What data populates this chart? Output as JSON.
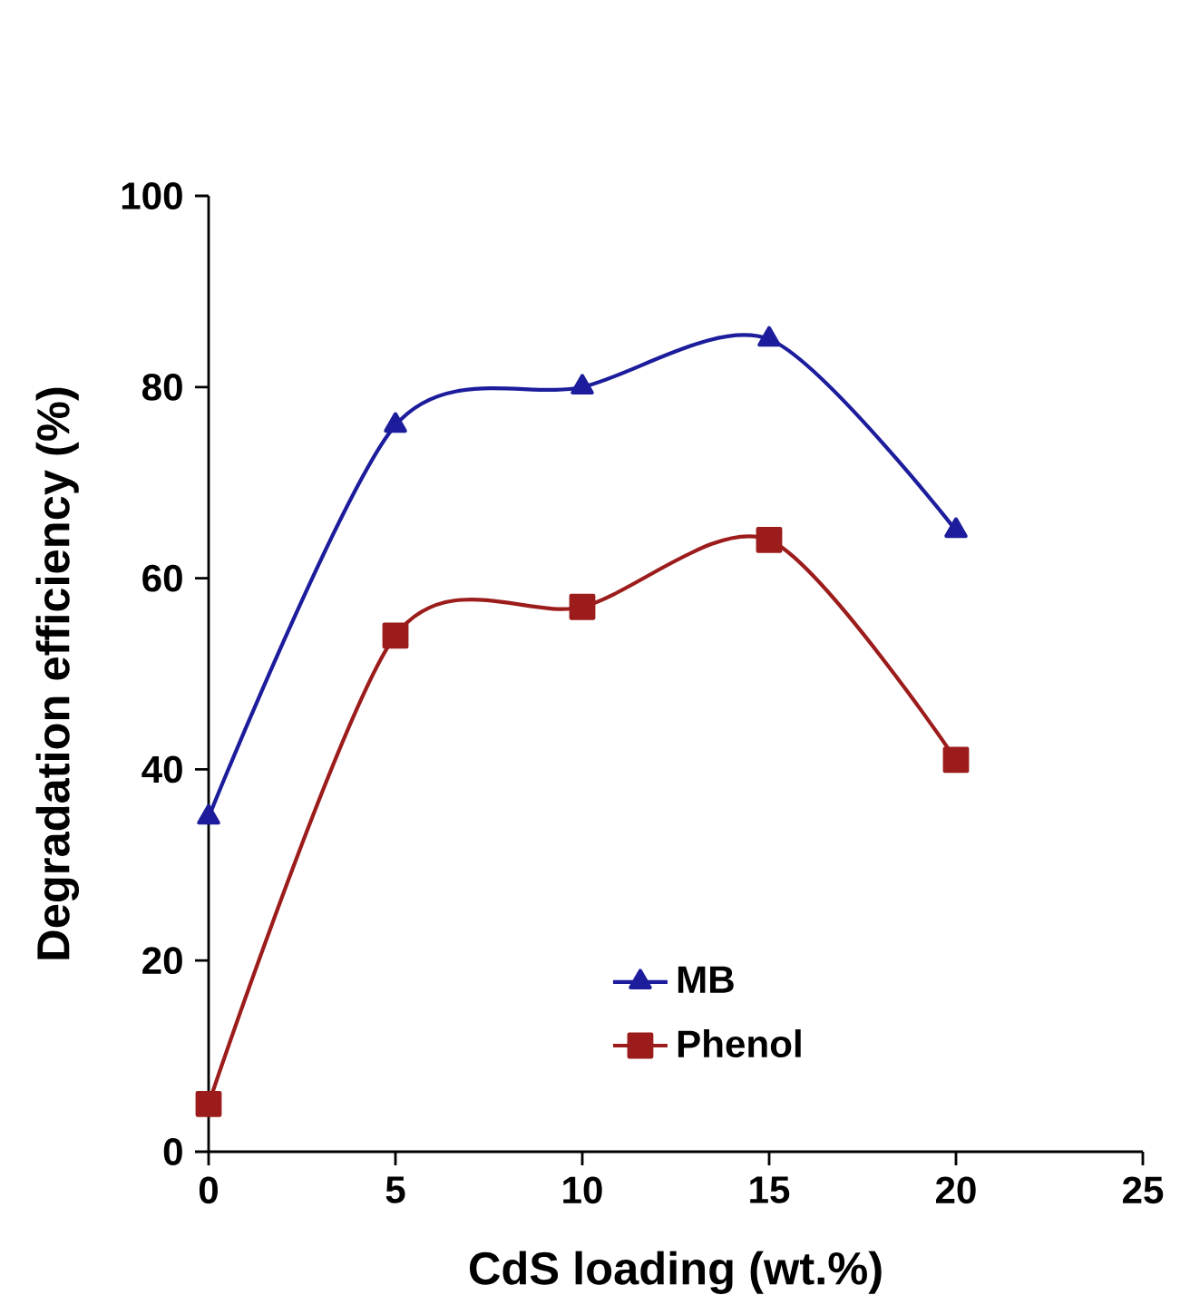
{
  "chart_data": {
    "type": "line",
    "xlabel": "CdS loading (wt.%)",
    "ylabel": "Degradation efficiency (%)",
    "x": [
      0,
      5,
      10,
      15,
      20
    ],
    "series": [
      {
        "name": "MB",
        "color": "#1c1c9c",
        "marker": "triangle",
        "values": [
          35,
          76,
          80,
          85,
          65
        ]
      },
      {
        "name": "Phenol",
        "color": "#9c1c1c",
        "marker": "square",
        "values": [
          5,
          54,
          57,
          64,
          41
        ]
      }
    ],
    "xlim": [
      0,
      25
    ],
    "xticks": [
      0,
      5,
      10,
      15,
      20,
      25
    ],
    "ylim": [
      0,
      100
    ],
    "yticks": [
      0,
      20,
      40,
      60,
      80,
      100
    ],
    "grid": false,
    "legend": "bottom",
    "line_style": "solid"
  }
}
